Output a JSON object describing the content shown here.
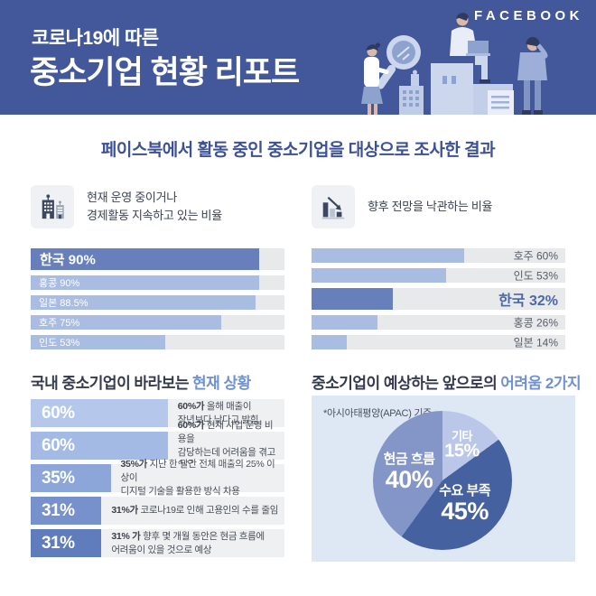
{
  "brand": {
    "logo_text": "FACEBOOK"
  },
  "header": {
    "eyebrow": "코로나19에 따른",
    "title": "중소기업 현황 리포트",
    "bg_color": "#42589a"
  },
  "subtitle": "페이스북에서 활동 중인 중소기업을 대상으로 조사한 결과",
  "left_section": {
    "icon": "buildings-icon",
    "label_lines": [
      "현재 운영 중이거나",
      "경제활동 지속하고 있는 비율"
    ]
  },
  "right_section": {
    "icon": "declining-chart-icon",
    "label": "향후 전망을 낙관하는 비율"
  },
  "bottom_left_title": {
    "plain": "국내 중소기업이 바라보는",
    "highlight": "현재 상황"
  },
  "bottom_right_title": {
    "plain": "중소기업이 예상하는 앞으로의",
    "highlight": "어려움 2가지"
  },
  "colors": {
    "header_bg": "#42589a",
    "accent_blue": "#7091d2",
    "bar_light": "#a9bce1",
    "bar_dark": "#6780bc",
    "track": "#e8e9ea",
    "panel_bg": "#dee8f5"
  },
  "chart_data": [
    {
      "id": "operating_rate",
      "type": "bar",
      "title": "현재 운영 중이거나 경제활동 지속하고 있는 비율",
      "orientation": "horizontal",
      "categories": [
        "한국",
        "홍콩",
        "일본",
        "호주",
        "인도"
      ],
      "values": [
        90,
        90,
        88.5,
        75,
        53
      ],
      "labels": [
        "한국 90%",
        "홍콩 90%",
        "일본 88.5%",
        "호주 75%",
        "인도 53%"
      ],
      "highlight_index": 0,
      "xlim": [
        0,
        100
      ],
      "label_position": "inside-left",
      "bar_color": "#a9bce1",
      "highlight_color": "#6780bc",
      "track_color": "#e8e9ea"
    },
    {
      "id": "optimism_rate",
      "type": "bar",
      "title": "향후 전망을 낙관하는 비율",
      "orientation": "horizontal",
      "categories": [
        "호주",
        "인도",
        "한국",
        "홍콩",
        "일본"
      ],
      "values": [
        60,
        53,
        32,
        26,
        14
      ],
      "labels": [
        "호주 60%",
        "인도 53%",
        "한국 32%",
        "홍콩 26%",
        "일본 14%"
      ],
      "highlight_index": 2,
      "xlim": [
        0,
        100
      ],
      "label_position": "outside-right",
      "bar_color": "#a9bce1",
      "highlight_color": "#6780bc",
      "track_color": "#e8e9ea"
    },
    {
      "id": "current_situation",
      "type": "bar",
      "title": "국내 중소기업이 바라보는 현재 상황",
      "orientation": "horizontal",
      "values": [
        60,
        60,
        35,
        31,
        31
      ],
      "labels": [
        "60%",
        "60%",
        "35%",
        "31%",
        "31%"
      ],
      "bar_colors": [
        "#b5c8ec",
        "#a3bae5",
        "#8ca6d9",
        "#7791cd",
        "#5f7cbd"
      ],
      "xlim": [
        0,
        100
      ],
      "descriptions": [
        {
          "bold": "60%가",
          "lines": [
            "올해 매출이",
            "작년보다 낮다고 밝힘"
          ]
        },
        {
          "bold": "60%가",
          "lines": [
            "현재 사업 운영 비용을",
            "감당하는데 어려움을 겪고 있음"
          ]
        },
        {
          "bold": "35%가",
          "lines": [
            "지난 한 달간 전체 매출의 25% 이상이",
            "디지털 기술을 활용한 방식 차용"
          ]
        },
        {
          "bold": "31%가",
          "lines": [
            "코로나19로 인해 고용인의 수를 줄임"
          ]
        },
        {
          "bold": "31% 가",
          "lines": [
            "향후 몇 개월 동안은 현금 흐름에",
            "어려움이 있을 것으로 예상"
          ]
        }
      ]
    },
    {
      "id": "expected_difficulties",
      "type": "pie",
      "title": "중소기업이 예상하는 앞으로의 어려움 2가지",
      "note": "*아시아태평양(APAC) 기준",
      "start_angle_deg": 0,
      "direction": "clockwise",
      "slices": [
        {
          "label": "기타",
          "value": 15,
          "color": "#bac7e8"
        },
        {
          "label": "수요 부족",
          "value": 45,
          "color": "#45619f"
        },
        {
          "label": "현금 흐름",
          "value": 40,
          "color": "#8495c8"
        }
      ]
    }
  ]
}
